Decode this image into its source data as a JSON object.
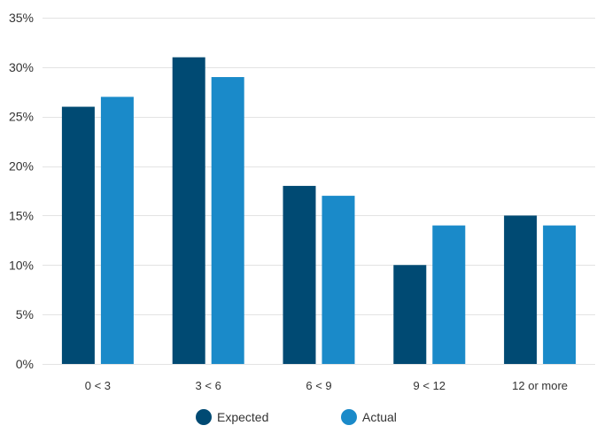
{
  "chart_data": {
    "type": "bar",
    "title": "",
    "xlabel": "",
    "ylabel": "",
    "categories": [
      "0 < 3",
      "3 < 6",
      "6 < 9",
      "9 < 12",
      "12 or more"
    ],
    "series": [
      {
        "name": "Expected",
        "values": [
          26,
          31,
          18,
          10,
          15
        ],
        "color": "#004a73"
      },
      {
        "name": "Actual",
        "values": [
          27,
          29,
          17,
          14,
          14
        ],
        "color": "#1a8ac9"
      }
    ],
    "ylim": [
      0,
      35
    ],
    "yticks": [
      0,
      5,
      10,
      15,
      20,
      25,
      30,
      35
    ],
    "ytick_labels": [
      "0%",
      "5%",
      "10%",
      "15%",
      "20%",
      "25%",
      "30%",
      "35%"
    ],
    "grid": true,
    "gridline_color": "#e3e3e3",
    "legend_position": "bottom-center"
  }
}
